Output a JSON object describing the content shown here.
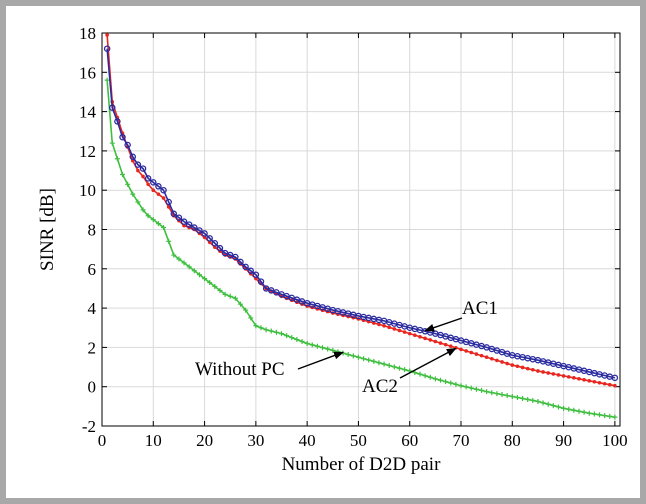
{
  "chart_data": {
    "type": "line",
    "title": "",
    "xlabel": "Number of D2D pair",
    "ylabel": "SINR [dB]",
    "xlim": [
      0,
      101
    ],
    "ylim": [
      -2,
      18
    ],
    "x_ticks": [
      0,
      10,
      20,
      30,
      40,
      50,
      60,
      70,
      80,
      90,
      100
    ],
    "y_ticks": [
      -2,
      0,
      2,
      4,
      6,
      8,
      10,
      12,
      14,
      16,
      18
    ],
    "grid": true,
    "legend": "none",
    "colors": {
      "AC1": "#2b2ba0",
      "AC2": "#e8261f",
      "Without PC": "#3fbf3f"
    },
    "series": [
      {
        "name": "AC1",
        "x": [
          1,
          2,
          3,
          4,
          5,
          6,
          7,
          8,
          9,
          10,
          12,
          14,
          16,
          18,
          20,
          22,
          24,
          26,
          28,
          30,
          32,
          35,
          40,
          45,
          50,
          55,
          60,
          65,
          70,
          75,
          80,
          85,
          90,
          95,
          100
        ],
        "y": [
          17.2,
          14.2,
          13.5,
          12.7,
          12.3,
          11.7,
          11.3,
          11.1,
          10.6,
          10.4,
          10.0,
          8.8,
          8.4,
          8.1,
          7.8,
          7.3,
          6.8,
          6.6,
          6.1,
          5.7,
          5.0,
          4.7,
          4.25,
          3.9,
          3.6,
          3.35,
          3.0,
          2.7,
          2.35,
          2.0,
          1.6,
          1.35,
          1.05,
          0.75,
          0.45
        ]
      },
      {
        "name": "AC2",
        "x": [
          1,
          2,
          3,
          4,
          5,
          6,
          7,
          8,
          9,
          10,
          12,
          14,
          16,
          18,
          20,
          22,
          24,
          26,
          28,
          30,
          32,
          35,
          40,
          45,
          50,
          55,
          60,
          65,
          70,
          75,
          80,
          85,
          90,
          95,
          100
        ],
        "y": [
          17.9,
          14.5,
          13.7,
          12.9,
          12.2,
          11.5,
          11.0,
          10.7,
          10.3,
          10.0,
          9.6,
          8.7,
          8.2,
          8.0,
          7.6,
          7.1,
          6.7,
          6.5,
          6.0,
          5.5,
          5.0,
          4.6,
          4.1,
          3.75,
          3.45,
          3.1,
          2.7,
          2.3,
          1.9,
          1.5,
          1.1,
          0.8,
          0.55,
          0.3,
          0.05
        ]
      },
      {
        "name": "Without PC",
        "x": [
          1,
          2,
          3,
          4,
          5,
          6,
          7,
          8,
          9,
          10,
          12,
          14,
          16,
          18,
          20,
          22,
          24,
          26,
          28,
          30,
          32,
          35,
          40,
          45,
          50,
          55,
          60,
          65,
          70,
          75,
          80,
          85,
          90,
          95,
          100
        ],
        "y": [
          15.6,
          12.4,
          11.6,
          10.8,
          10.3,
          9.8,
          9.4,
          9.0,
          8.7,
          8.5,
          8.1,
          6.7,
          6.3,
          5.9,
          5.5,
          5.1,
          4.7,
          4.5,
          3.9,
          3.1,
          2.9,
          2.7,
          2.2,
          1.85,
          1.5,
          1.15,
          0.8,
          0.4,
          0.05,
          -0.25,
          -0.5,
          -0.75,
          -1.1,
          -1.35,
          -1.55
        ]
      }
    ],
    "annotations": [
      {
        "text": "AC1",
        "target": [
          63,
          2.85
        ]
      },
      {
        "text": "AC2",
        "target": [
          69,
          1.95
        ]
      },
      {
        "text": "Without PC",
        "target": [
          47,
          1.75
        ]
      }
    ]
  }
}
